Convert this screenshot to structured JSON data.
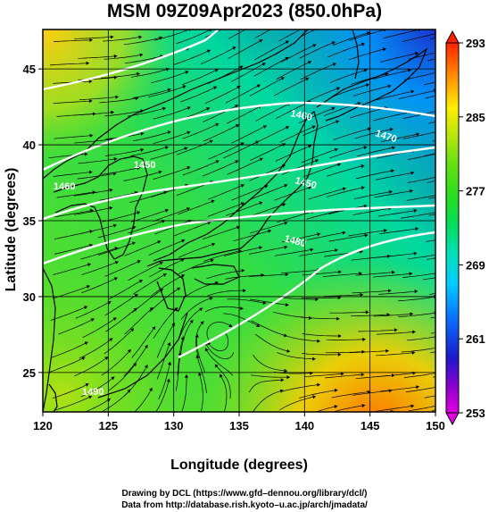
{
  "title": "MSM 09Z09Apr2023 (850.0hPa)",
  "x_axis": {
    "label": "Longitude (degrees)",
    "range": [
      120,
      150
    ],
    "ticks": [
      {
        "value": 120,
        "label": "120"
      },
      {
        "value": 125,
        "label": "125"
      },
      {
        "value": 130,
        "label": "130"
      },
      {
        "value": 135,
        "label": "135"
      },
      {
        "value": 140,
        "label": "140"
      },
      {
        "value": 145,
        "label": "145"
      },
      {
        "value": 150,
        "label": "150"
      }
    ]
  },
  "y_axis": {
    "label": "Latitude  (degrees)",
    "range": [
      22.4,
      47.6
    ],
    "ticks": [
      {
        "value": 25,
        "label": "25"
      },
      {
        "value": 30,
        "label": "30"
      },
      {
        "value": 35,
        "label": "35"
      },
      {
        "value": 40,
        "label": "40"
      },
      {
        "value": 45,
        "label": "45"
      }
    ]
  },
  "colorbar": {
    "range": [
      253,
      293
    ],
    "ticks": [
      {
        "value": 293,
        "label": "293"
      },
      {
        "value": 285,
        "label": "285"
      },
      {
        "value": 277,
        "label": "277"
      },
      {
        "value": 269,
        "label": "269"
      },
      {
        "value": 261,
        "label": "261"
      },
      {
        "value": 253,
        "label": "253"
      }
    ],
    "stops": [
      {
        "value": 253,
        "color": "#e000e0"
      },
      {
        "value": 256,
        "color": "#8800cc"
      },
      {
        "value": 259,
        "color": "#1a1acc"
      },
      {
        "value": 263,
        "color": "#0a6cff"
      },
      {
        "value": 267,
        "color": "#00ccff"
      },
      {
        "value": 270,
        "color": "#00e0c0"
      },
      {
        "value": 273,
        "color": "#00dd66"
      },
      {
        "value": 276,
        "color": "#22dd22"
      },
      {
        "value": 280,
        "color": "#66e011"
      },
      {
        "value": 283,
        "color": "#b8e60a"
      },
      {
        "value": 286,
        "color": "#ffee00"
      },
      {
        "value": 289,
        "color": "#ff9900"
      },
      {
        "value": 293,
        "color": "#ff2200"
      }
    ]
  },
  "contour_labels": [
    "1460",
    "1450",
    "1470",
    "1480",
    "1490"
  ],
  "credits": [
    "Drawing by DCL (https://www.gfd–dennou.org/library/dcl/)",
    "Data from http://database.rish.kyoto–u.ac.jp/arch/jmadata/"
  ]
}
